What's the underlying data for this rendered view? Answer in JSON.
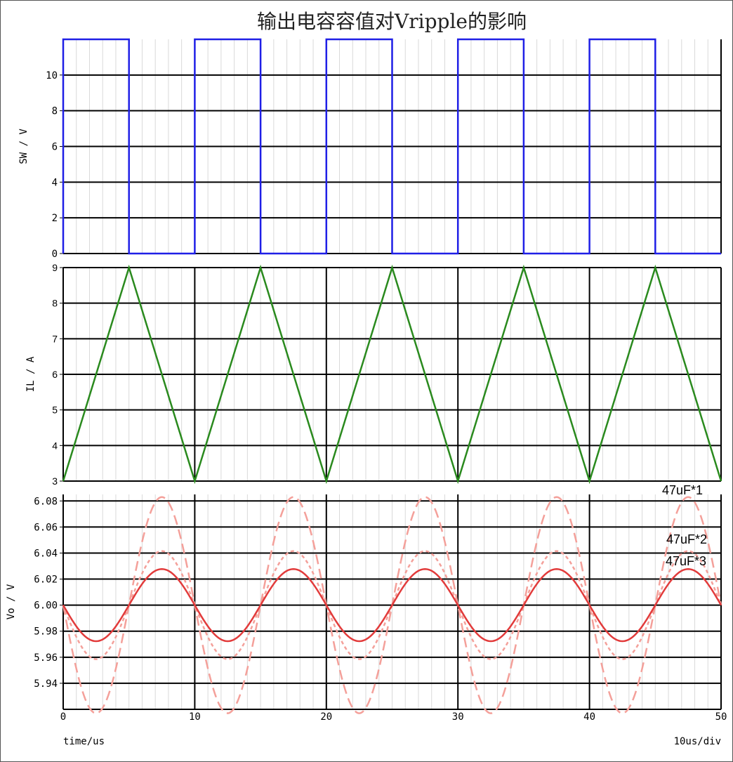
{
  "title": "输出电容容值对Vripple的影响",
  "x_axis": {
    "unit_label": "time/us",
    "div_label": "10us/div"
  },
  "colors": {
    "sw": "#1f1fe6",
    "il": "#2a8a1e",
    "vo": "#e23b3b",
    "vo_light": "#f4a09a",
    "grid_major": "#000000",
    "grid_minor": "#d9d9d9"
  },
  "chart_data": [
    {
      "type": "line",
      "ylabel": "SW / V",
      "ylim": [
        0,
        12
      ],
      "yticks": [
        "0",
        "2",
        "4",
        "6",
        "8",
        "10"
      ],
      "xlim": [
        0,
        50
      ],
      "xticks": [
        "0",
        "10",
        "20",
        "30",
        "40",
        "50"
      ],
      "series": [
        {
          "x": [
            0,
            0,
            5,
            5,
            10,
            10,
            15,
            15,
            20,
            20,
            25,
            25,
            30,
            30,
            35,
            35,
            40,
            40,
            45,
            45,
            50
          ],
          "y": [
            0,
            12,
            12,
            0,
            0,
            12,
            12,
            0,
            0,
            12,
            12,
            0,
            0,
            12,
            12,
            0,
            0,
            12,
            12,
            0,
            0
          ]
        }
      ]
    },
    {
      "type": "line",
      "ylabel": "IL / A",
      "ylim": [
        3,
        9
      ],
      "yticks": [
        "3",
        "4",
        "5",
        "6",
        "7",
        "8",
        "9"
      ],
      "xlim": [
        0,
        50
      ],
      "series": [
        {
          "x": [
            0,
            5,
            10,
            15,
            20,
            25,
            30,
            35,
            40,
            45,
            50
          ],
          "y": [
            3,
            9,
            3,
            9,
            3,
            9,
            3,
            9,
            3,
            9,
            3
          ]
        }
      ]
    },
    {
      "type": "line",
      "ylabel": "Vo / V",
      "ylim": [
        5.92,
        6.085
      ],
      "yticks": [
        "5.94",
        "5.96",
        "5.98",
        "6.00",
        "6.02",
        "6.04",
        "6.06",
        "6.08"
      ],
      "xlim": [
        0,
        50
      ],
      "annotations": [
        "47uF*1",
        "47uF*2",
        "47uF*3"
      ],
      "series": [
        {
          "center": 6.0,
          "amplitude": 0.083,
          "period": 10,
          "style": "dash-long"
        },
        {
          "center": 6.0,
          "amplitude": 0.0415,
          "period": 10,
          "style": "dash-short"
        },
        {
          "center": 6.0,
          "amplitude": 0.0277,
          "period": 10,
          "style": "solid"
        }
      ]
    }
  ]
}
